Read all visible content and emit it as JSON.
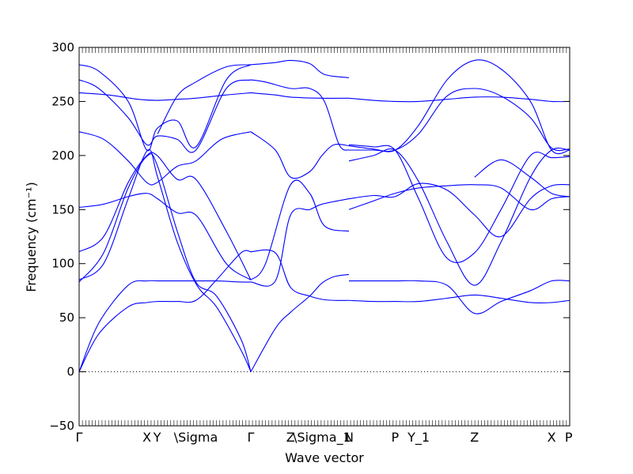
{
  "chart_data": {
    "type": "line",
    "xlabel": "Wave vector",
    "ylabel": "Frequency (cm⁻¹)",
    "ylim": [
      -50,
      300
    ],
    "yticks": [
      -50,
      0,
      50,
      100,
      150,
      200,
      250,
      300
    ],
    "xlim": [
      0,
      1
    ],
    "xticks": [
      {
        "pos": 0.0,
        "label": "Γ"
      },
      {
        "pos": 0.138,
        "label": "X"
      },
      {
        "pos": 0.159,
        "label": "Y"
      },
      {
        "pos": 0.238,
        "label": "\\Sigma"
      },
      {
        "pos": 0.35,
        "label": "Γ"
      },
      {
        "pos": 0.431,
        "label": "Z"
      },
      {
        "pos": 0.495,
        "label": "\\Sigma_1"
      },
      {
        "pos": 0.55,
        "label": "N"
      },
      {
        "pos": 0.644,
        "label": "P"
      },
      {
        "pos": 0.692,
        "label": "Y_1"
      },
      {
        "pos": 0.806,
        "label": "Z"
      },
      {
        "pos": 0.963,
        "label": "X"
      },
      {
        "pos": 0.998,
        "label": "P"
      }
    ],
    "zero_line": {
      "y": 0,
      "style": "dotted"
    },
    "line_color": "#0000ff",
    "series": [
      {
        "x": [
          0,
          0.04,
          0.1,
          0.138,
          0.16,
          0.2,
          0.238,
          0.28,
          0.33,
          0.35
        ],
        "values": [
          0,
          45,
          80,
          84,
          84,
          84,
          84,
          84,
          83,
          83
        ]
      },
      {
        "x": [
          0,
          0.04,
          0.1,
          0.138,
          0.16,
          0.2,
          0.238,
          0.28,
          0.33,
          0.35
        ],
        "values": [
          0,
          35,
          60,
          64,
          65,
          65,
          66,
          85,
          110,
          111
        ]
      },
      {
        "x": [
          0,
          0.05,
          0.1,
          0.14,
          0.16,
          0.2,
          0.238,
          0.28,
          0.33,
          0.35
        ],
        "values": [
          83,
          110,
          170,
          200,
          190,
          130,
          83,
          70,
          30,
          0
        ]
      },
      {
        "x": [
          0,
          0.05,
          0.1,
          0.14,
          0.16,
          0.2,
          0.24,
          0.28,
          0.33,
          0.35
        ],
        "values": [
          85,
          100,
          160,
          205,
          180,
          120,
          80,
          60,
          20,
          0
        ]
      },
      {
        "x": [
          0,
          0.05,
          0.1,
          0.138,
          0.159,
          0.2,
          0.238,
          0.3,
          0.35
        ],
        "values": [
          111,
          125,
          175,
          200,
          200,
          178,
          178,
          130,
          85
        ]
      },
      {
        "x": [
          0,
          0.05,
          0.1,
          0.138,
          0.16,
          0.2,
          0.24,
          0.3,
          0.35
        ],
        "values": [
          152,
          155,
          162,
          165,
          160,
          147,
          144,
          100,
          85
        ]
      },
      {
        "x": [
          0,
          0.05,
          0.1,
          0.138,
          0.159,
          0.2,
          0.238,
          0.29,
          0.35
        ],
        "values": [
          222,
          215,
          195,
          175,
          175,
          190,
          195,
          215,
          222
        ]
      },
      {
        "x": [
          0,
          0.06,
          0.12,
          0.159,
          0.2,
          0.238,
          0.3,
          0.35
        ],
        "values": [
          258,
          256,
          252,
          251,
          252,
          253,
          256,
          258
        ]
      },
      {
        "x": [
          0,
          0.04,
          0.1,
          0.138,
          0.159,
          0.2,
          0.238,
          0.3,
          0.35
        ],
        "values": [
          270,
          262,
          235,
          210,
          218,
          215,
          205,
          262,
          270
        ]
      },
      {
        "x": [
          0,
          0.04,
          0.1,
          0.138,
          0.159,
          0.2,
          0.238,
          0.3,
          0.35
        ],
        "values": [
          284,
          278,
          250,
          205,
          225,
          232,
          208,
          270,
          284
        ]
      },
      {
        "x": [
          0.16,
          0.2,
          0.238,
          0.3,
          0.35
        ],
        "values": [
          220,
          255,
          268,
          282,
          284
        ]
      },
      {
        "x": [
          0.35,
          0.4,
          0.431,
          0.47,
          0.495,
          0.52,
          0.55
        ],
        "values": [
          0,
          40,
          55,
          70,
          82,
          88,
          90
        ]
      },
      {
        "x": [
          0.35,
          0.4,
          0.431,
          0.47,
          0.495,
          0.52,
          0.55
        ],
        "values": [
          111,
          110,
          78,
          70,
          67,
          66,
          66
        ]
      },
      {
        "x": [
          0.35,
          0.4,
          0.431,
          0.47,
          0.495,
          0.55
        ],
        "values": [
          83,
          84,
          145,
          150,
          155,
          160
        ]
      },
      {
        "x": [
          0.35,
          0.38,
          0.431,
          0.47,
          0.5,
          0.55
        ],
        "values": [
          85,
          100,
          173,
          165,
          135,
          130
        ]
      },
      {
        "x": [
          0.35,
          0.4,
          0.431,
          0.47,
          0.495,
          0.52,
          0.55
        ],
        "values": [
          222,
          205,
          180,
          185,
          200,
          210,
          209
        ]
      },
      {
        "x": [
          0.35,
          0.4,
          0.431,
          0.495,
          0.55
        ],
        "values": [
          258,
          256,
          254,
          253,
          253
        ]
      },
      {
        "x": [
          0.35,
          0.38,
          0.431,
          0.47,
          0.5,
          0.53,
          0.55
        ],
        "values": [
          270,
          268,
          262,
          262,
          250,
          210,
          205
        ]
      },
      {
        "x": [
          0.35,
          0.4,
          0.431,
          0.47,
          0.5,
          0.55
        ],
        "values": [
          284,
          286,
          288,
          285,
          275,
          272
        ]
      },
      {
        "x": [
          0.55,
          0.6,
          0.644,
          0.692,
          0.75,
          0.806,
          0.86,
          0.92,
          0.963,
          1.0
        ],
        "values": [
          84,
          84,
          84,
          84,
          80,
          54,
          65,
          75,
          84,
          84
        ]
      },
      {
        "x": [
          0.55,
          0.6,
          0.644,
          0.692,
          0.75,
          0.806,
          0.86,
          0.92,
          0.963,
          1.0
        ],
        "values": [
          66,
          65,
          65,
          65,
          68,
          71,
          68,
          64,
          64,
          66
        ]
      },
      {
        "x": [
          0.55,
          0.6,
          0.644,
          0.692,
          0.75,
          0.806,
          0.86,
          0.92,
          0.963,
          1.0
        ],
        "values": [
          160,
          163,
          162,
          174,
          168,
          145,
          125,
          160,
          172,
          173
        ]
      },
      {
        "x": [
          0.55,
          0.6,
          0.644,
          0.692,
          0.75,
          0.806,
          0.86,
          0.92,
          0.963,
          1.0
        ],
        "values": [
          210,
          208,
          205,
          160,
          105,
          110,
          150,
          200,
          198,
          199
        ]
      },
      {
        "x": [
          0.55,
          0.6,
          0.644,
          0.692,
          0.75,
          0.806,
          0.86,
          0.92,
          0.963,
          1.0
        ],
        "values": [
          195,
          200,
          205,
          176,
          120,
          80,
          120,
          180,
          205,
          205
        ]
      },
      {
        "x": [
          0.55,
          0.6,
          0.644,
          0.692,
          0.75,
          0.806,
          0.86,
          0.92,
          0.963,
          1.0
        ],
        "values": [
          150,
          158,
          165,
          170,
          172,
          173,
          170,
          150,
          160,
          162
        ]
      },
      {
        "x": [
          0.55,
          0.6,
          0.644,
          0.692,
          0.75,
          0.806,
          0.86,
          0.92,
          0.963,
          1.0
        ],
        "values": [
          253,
          251,
          250,
          250,
          252,
          254,
          254,
          252,
          250,
          250
        ]
      },
      {
        "x": [
          0.55,
          0.6,
          0.644,
          0.692,
          0.75,
          0.806,
          0.86,
          0.92,
          0.963,
          1.0
        ],
        "values": [
          209,
          206,
          205,
          228,
          270,
          288,
          280,
          250,
          205,
          205
        ]
      },
      {
        "x": [
          0.55,
          0.6,
          0.644,
          0.692,
          0.75,
          0.806,
          0.86,
          0.92,
          0.963,
          1.0
        ],
        "values": [
          205,
          205,
          205,
          220,
          255,
          262,
          255,
          235,
          207,
          206
        ]
      },
      {
        "x": [
          0.806,
          0.86,
          0.92,
          0.963,
          1.0
        ],
        "values": [
          180,
          196,
          180,
          165,
          162
        ]
      }
    ]
  }
}
